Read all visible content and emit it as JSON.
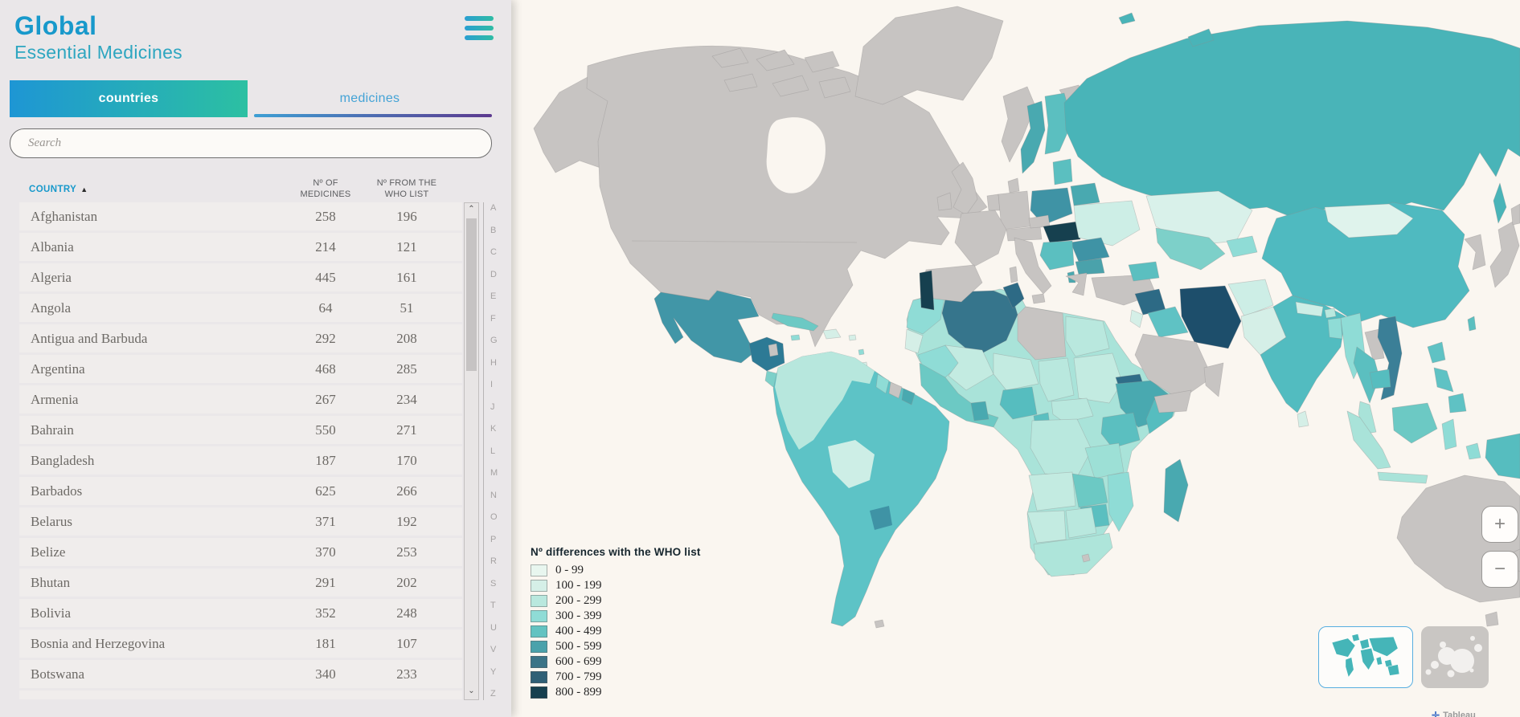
{
  "header": {
    "title": "Global",
    "subtitle": "Essential Medicines"
  },
  "tabs": [
    {
      "label": "countries",
      "active": true
    },
    {
      "label": "medicines",
      "active": false
    }
  ],
  "search": {
    "placeholder": "Search"
  },
  "table": {
    "sort_column": "COUNTRY",
    "sort_direction": "ascending",
    "headers": {
      "country": "COUNTRY",
      "medicines_line1": "Nº OF",
      "medicines_line2": "MEDICINES",
      "who_line1": "Nº FROM THE",
      "who_line2": "WHO LIST"
    },
    "rows": [
      {
        "country": "Afghanistan",
        "medicines": "258",
        "who": "196"
      },
      {
        "country": "Albania",
        "medicines": "214",
        "who": "121"
      },
      {
        "country": "Algeria",
        "medicines": "445",
        "who": "161"
      },
      {
        "country": "Angola",
        "medicines": "64",
        "who": "51"
      },
      {
        "country": "Antigua and Barbuda",
        "medicines": "292",
        "who": "208"
      },
      {
        "country": "Argentina",
        "medicines": "468",
        "who": "285"
      },
      {
        "country": "Armenia",
        "medicines": "267",
        "who": "234"
      },
      {
        "country": "Bahrain",
        "medicines": "550",
        "who": "271"
      },
      {
        "country": "Bangladesh",
        "medicines": "187",
        "who": "170"
      },
      {
        "country": "Barbados",
        "medicines": "625",
        "who": "266"
      },
      {
        "country": "Belarus",
        "medicines": "371",
        "who": "192"
      },
      {
        "country": "Belize",
        "medicines": "370",
        "who": "253"
      },
      {
        "country": "Bhutan",
        "medicines": "291",
        "who": "202"
      },
      {
        "country": "Bolivia",
        "medicines": "352",
        "who": "248"
      },
      {
        "country": "Bosnia and Herzegovina",
        "medicines": "181",
        "who": "107"
      },
      {
        "country": "Botswana",
        "medicines": "340",
        "who": "233"
      }
    ]
  },
  "alphabet": [
    "A",
    "B",
    "C",
    "D",
    "E",
    "F",
    "G",
    "H",
    "I",
    "J",
    "K",
    "L",
    "M",
    "N",
    "O",
    "P",
    "R",
    "S",
    "T",
    "U",
    "V",
    "Y",
    "Z"
  ],
  "legend": {
    "title": "Nº differences with the WHO list",
    "items": [
      {
        "label": "0 - 99",
        "color": "#e8f6ef"
      },
      {
        "label": "100 - 199",
        "color": "#d5efe7"
      },
      {
        "label": "200 - 299",
        "color": "#b9e8de"
      },
      {
        "label": "300 - 399",
        "color": "#8fdcd6"
      },
      {
        "label": "400 - 499",
        "color": "#63c3c1"
      },
      {
        "label": "500 - 599",
        "color": "#4aa2ab"
      },
      {
        "label": "600 - 699",
        "color": "#3b7487"
      },
      {
        "label": "700 - 799",
        "color": "#2f6076"
      },
      {
        "label": "800 - 899",
        "color": "#16404f"
      }
    ]
  },
  "map": {
    "zoom_in": "+",
    "zoom_out": "−",
    "no_data_color": "#c7c4c2",
    "sea_color": "#faf6f0",
    "attribution": "Tableau"
  },
  "colors": {
    "accent_blue": "#1899cb",
    "accent_teal": "#2cc0a2",
    "tab_underline_from": "#3e9fd4",
    "tab_underline_to": "#5d3a8f"
  }
}
